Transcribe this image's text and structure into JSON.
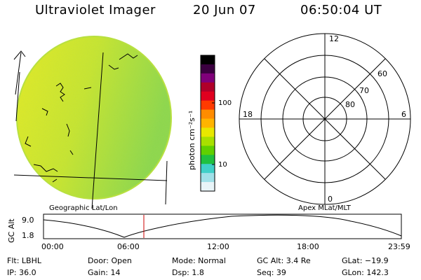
{
  "header": {
    "title": "Ultraviolet Imager",
    "date": "20 Jun 07",
    "time": "06:50:04 UT"
  },
  "colorbar": {
    "unit_label": "photon cm⁻²s⁻¹",
    "ticks": [
      "100",
      "10"
    ],
    "colors": [
      "#000000",
      "#3b0040",
      "#80007a",
      "#b0002a",
      "#e0001f",
      "#ff3a00",
      "#ff8c00",
      "#ffb400",
      "#e8e800",
      "#a8e000",
      "#60d000",
      "#20c040",
      "#40d0c8",
      "#a0e0e8",
      "#e8f4f8"
    ]
  },
  "left_panel": {
    "label": "Geographic Lat/Lon"
  },
  "right_panel": {
    "label": "Apex MLat/MLT",
    "mlt_labels": {
      "top": "12",
      "left": "18",
      "right": "6",
      "bottom": "0"
    },
    "lat_labels": [
      "60",
      "70",
      "80"
    ]
  },
  "timeline": {
    "ylabel": "GC Alt",
    "yticks": [
      "9.0",
      "1.8"
    ],
    "xticks": [
      "00:00",
      "06:00",
      "12:00",
      "18:00",
      "23:59"
    ],
    "marker_color": "#cc0000"
  },
  "status": {
    "filter": "Flt: LBHL",
    "ip": "IP: 36.0",
    "door": "Door: Open",
    "gain": "Gain: 14",
    "mode": "Mode: Normal",
    "dsp": "Dsp:    1.8",
    "gc_alt": "GC Alt: 3.4 Re",
    "seq": "Seq: 39",
    "glat": "GLat: −19.9",
    "glon": "GLon: 142.3"
  }
}
